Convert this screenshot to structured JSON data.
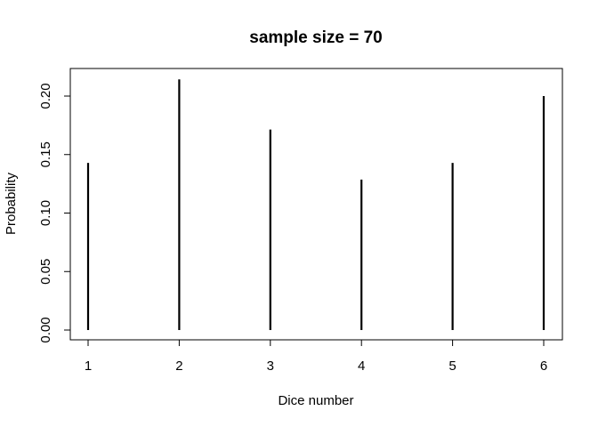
{
  "chart_data": {
    "type": "bar",
    "title": "sample size = 70",
    "xlabel": "Dice number",
    "ylabel": "Probability",
    "categories": [
      "1",
      "2",
      "3",
      "4",
      "5",
      "6"
    ],
    "x": [
      1,
      2,
      3,
      4,
      5,
      6
    ],
    "values": [
      0.1429,
      0.2143,
      0.1714,
      0.1286,
      0.1429,
      0.2
    ],
    "xlim": [
      1,
      6
    ],
    "ylim": [
      0,
      0.214
    ],
    "x_ticks": [
      1,
      2,
      3,
      4,
      5,
      6
    ],
    "x_tick_labels": [
      "1",
      "2",
      "3",
      "4",
      "5",
      "6"
    ],
    "y_ticks": [
      0,
      0.05,
      0.1,
      0.15,
      0.2
    ],
    "y_tick_labels": [
      "0.00",
      "0.05",
      "0.10",
      "0.15",
      "0.20"
    ],
    "grid": false,
    "legend": "none",
    "bar_style": "vertical-lines",
    "bar_color": "#000000"
  }
}
